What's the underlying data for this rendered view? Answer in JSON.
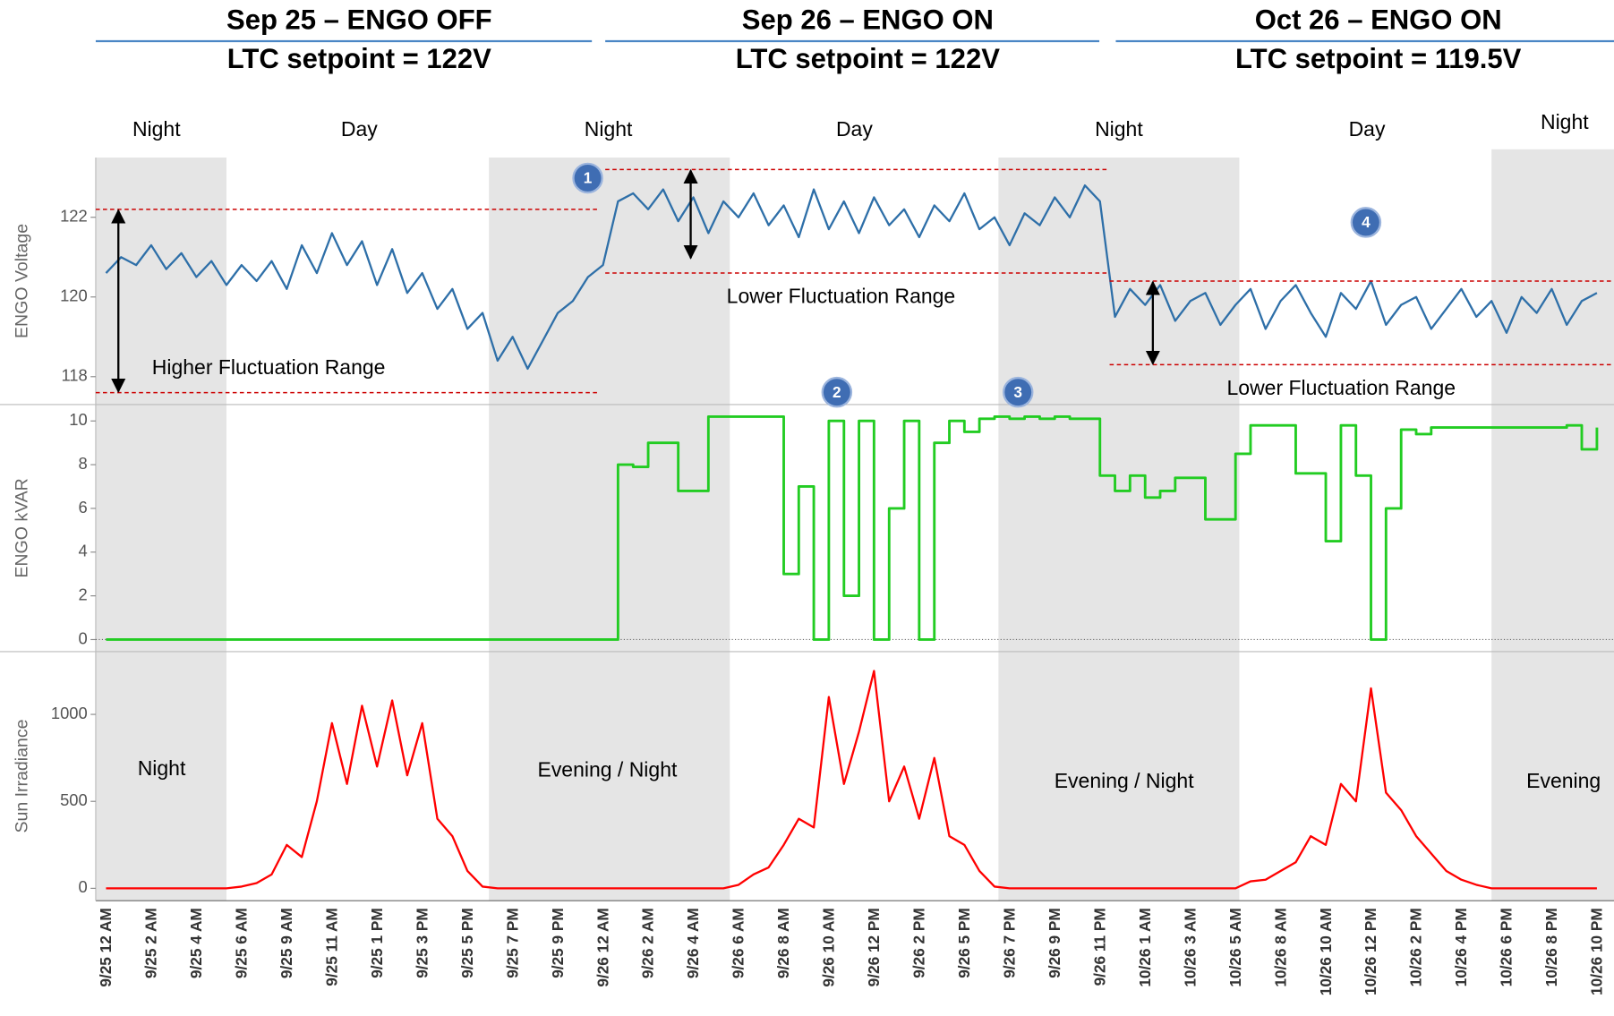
{
  "chart_data": {
    "type": "line",
    "headers": [
      {
        "title": "Sep 25 – ENGO OFF",
        "subtitle": "LTC setpoint = 122V"
      },
      {
        "title": "Sep 26 – ENGO ON",
        "subtitle": "LTC setpoint = 122V"
      },
      {
        "title": "Oct 26 – ENGO ON",
        "subtitle": "LTC setpoint = 119.5V"
      }
    ],
    "period_labels": [
      "Night",
      "Day",
      "Night",
      "Day",
      "Night",
      "Day",
      "Night"
    ],
    "irradiance_notes": [
      "Night",
      "Evening / Night",
      "Evening / Night",
      "Evening"
    ],
    "markers": [
      "1",
      "2",
      "3",
      "4"
    ],
    "categories": [
      "9/25 12 AM",
      null,
      null,
      "9/25 2 AM",
      null,
      null,
      "9/25 4 AM",
      null,
      null,
      "9/25 6 AM",
      null,
      null,
      "9/25 9 AM",
      null,
      null,
      "9/25 11 AM",
      null,
      null,
      "9/25 1 PM",
      null,
      null,
      "9/25 3 PM",
      null,
      null,
      "9/25 5 PM",
      null,
      null,
      "9/25 7 PM",
      null,
      null,
      "9/25 9 PM",
      null,
      null,
      "9/26 12 AM",
      null,
      null,
      "9/26 2 AM",
      null,
      null,
      "9/26 4 AM",
      null,
      null,
      "9/26 6 AM",
      null,
      null,
      "9/26 8 AM",
      null,
      null,
      "9/26 10 AM",
      null,
      null,
      "9/26 12 PM",
      null,
      null,
      "9/26 2 PM",
      null,
      null,
      "9/26 5 PM",
      null,
      null,
      "9/26 7 PM",
      null,
      null,
      "9/26 9 PM",
      null,
      null,
      "9/26 11 PM",
      null,
      null,
      "10/26 1 AM",
      null,
      null,
      "10/26 3 AM",
      null,
      null,
      "10/26 5 AM",
      null,
      null,
      "10/26 8 AM",
      null,
      null,
      "10/26 10 AM",
      null,
      null,
      "10/26 12 PM",
      null,
      null,
      "10/26 2 PM",
      null,
      null,
      "10/26 4 PM",
      null,
      null,
      "10/26 6 PM",
      null,
      null,
      "10/26 8 PM",
      null,
      null,
      "10/26 10 PM"
    ],
    "panels": [
      {
        "ylabel": "ENGO Voltage",
        "ylim": [
          117.3,
          123.5
        ],
        "yticks": [
          118,
          120,
          122
        ],
        "color": "#2e6fa8",
        "values": [
          120.6,
          121.0,
          120.8,
          121.3,
          120.7,
          121.1,
          120.5,
          120.9,
          120.3,
          120.8,
          120.4,
          120.9,
          120.2,
          121.3,
          120.6,
          121.6,
          120.8,
          121.4,
          120.3,
          121.2,
          120.1,
          120.6,
          119.7,
          120.2,
          119.2,
          119.6,
          118.4,
          119.0,
          118.2,
          118.9,
          119.6,
          119.9,
          120.5,
          120.8,
          122.4,
          122.6,
          122.2,
          122.7,
          121.9,
          122.5,
          121.6,
          122.4,
          122.0,
          122.6,
          121.8,
          122.3,
          121.5,
          122.7,
          121.7,
          122.4,
          121.6,
          122.5,
          121.8,
          122.2,
          121.5,
          122.3,
          121.9,
          122.6,
          121.7,
          122.0,
          121.3,
          122.1,
          121.8,
          122.5,
          122.0,
          122.8,
          122.4,
          119.5,
          120.2,
          119.8,
          120.3,
          119.4,
          119.9,
          120.1,
          119.3,
          119.8,
          120.2,
          119.2,
          119.9,
          120.3,
          119.6,
          119.0,
          120.1,
          119.7,
          120.4,
          119.3,
          119.8,
          120.0,
          119.2,
          119.7,
          120.2,
          119.5,
          119.9,
          119.1,
          120.0,
          119.6,
          120.2,
          119.3,
          119.9,
          120.1
        ],
        "ranges": [
          {
            "label": "Higher Fluctuation Range",
            "high": 122.2,
            "low": 117.6
          },
          {
            "label": "Lower Fluctuation Range",
            "high": 123.2,
            "low": 120.6
          },
          {
            "label": "Lower Fluctuation Range",
            "high": 120.4,
            "low": 118.3
          }
        ]
      },
      {
        "ylabel": "ENGO kVAR",
        "ylim": [
          -0.55,
          10.75
        ],
        "yticks": [
          0,
          2,
          4,
          6,
          8,
          10
        ],
        "color": "#22cc22",
        "values": [
          0,
          0,
          0,
          0,
          0,
          0,
          0,
          0,
          0,
          0,
          0,
          0,
          0,
          0,
          0,
          0,
          0,
          0,
          0,
          0,
          0,
          0,
          0,
          0,
          0,
          0,
          0,
          0,
          0,
          0,
          0,
          0,
          0,
          0,
          8,
          7.9,
          9,
          9,
          6.8,
          6.8,
          10.2,
          10.2,
          10.2,
          10.2,
          10.2,
          3,
          7,
          0,
          10,
          2,
          10,
          0,
          6,
          10,
          0,
          9,
          10,
          9.5,
          10.1,
          10.2,
          10.1,
          10.2,
          10.1,
          10.2,
          10.1,
          10.1,
          7.5,
          6.8,
          7.5,
          6.5,
          6.8,
          7.4,
          7.4,
          5.5,
          5.5,
          8.5,
          9.8,
          9.8,
          9.8,
          7.6,
          7.6,
          4.5,
          9.8,
          7.5,
          0,
          6,
          9.6,
          9.4,
          9.7,
          9.7,
          9.7,
          9.7,
          9.7,
          9.7,
          9.7,
          9.7,
          9.7,
          9.8,
          8.7,
          9.7
        ]
      },
      {
        "ylabel": "Sun Irradiance",
        "ylim": [
          -71,
          1361
        ],
        "yticks": [
          0,
          500,
          1000
        ],
        "color": "#ff0000",
        "values": [
          0,
          0,
          0,
          0,
          0,
          0,
          0,
          0,
          0,
          10,
          30,
          80,
          250,
          180,
          500,
          950,
          600,
          1050,
          700,
          1080,
          650,
          950,
          400,
          300,
          100,
          10,
          0,
          0,
          0,
          0,
          0,
          0,
          0,
          0,
          0,
          0,
          0,
          0,
          0,
          0,
          0,
          0,
          20,
          80,
          120,
          250,
          400,
          350,
          1100,
          600,
          900,
          1250,
          500,
          700,
          400,
          750,
          300,
          250,
          100,
          10,
          0,
          0,
          0,
          0,
          0,
          0,
          0,
          0,
          0,
          0,
          0,
          0,
          0,
          0,
          0,
          0,
          40,
          50,
          100,
          150,
          300,
          250,
          600,
          500,
          1150,
          550,
          450,
          300,
          200,
          100,
          50,
          20,
          0,
          0,
          0,
          0,
          0,
          0,
          0,
          0
        ]
      }
    ]
  }
}
